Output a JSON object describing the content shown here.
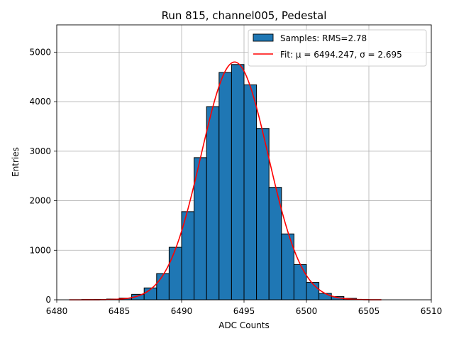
{
  "chart_data": {
    "type": "bar",
    "title": "Run 815, channel005, Pedestal",
    "xlabel": "ADC Counts",
    "ylabel": "Entries",
    "xlim": [
      6480,
      6510
    ],
    "ylim": [
      0,
      5550
    ],
    "xticks": [
      6480,
      6485,
      6490,
      6495,
      6500,
      6505,
      6510
    ],
    "yticks": [
      0,
      1000,
      2000,
      3000,
      4000,
      5000
    ],
    "grid": true,
    "legend_position": "top-right",
    "histogram": {
      "name": "Samples: RMS=2.78",
      "color": "#1f77b4",
      "edgecolor": "#000000",
      "bins": [
        {
          "x0": 6482,
          "x1": 6483,
          "value": 5
        },
        {
          "x0": 6483,
          "x1": 6484,
          "value": 8
        },
        {
          "x0": 6484,
          "x1": 6485,
          "value": 15
        },
        {
          "x0": 6485,
          "x1": 6486,
          "value": 35
        },
        {
          "x0": 6486,
          "x1": 6487,
          "value": 110
        },
        {
          "x0": 6487,
          "x1": 6488,
          "value": 240
        },
        {
          "x0": 6488,
          "x1": 6489,
          "value": 530
        },
        {
          "x0": 6489,
          "x1": 6490,
          "value": 1060
        },
        {
          "x0": 6490,
          "x1": 6491,
          "value": 1780
        },
        {
          "x0": 6491,
          "x1": 6492,
          "value": 2870
        },
        {
          "x0": 6492,
          "x1": 6493,
          "value": 3900
        },
        {
          "x0": 6493,
          "x1": 6494,
          "value": 4590
        },
        {
          "x0": 6494,
          "x1": 6495,
          "value": 4750
        },
        {
          "x0": 6495,
          "x1": 6496,
          "value": 4340
        },
        {
          "x0": 6496,
          "x1": 6497,
          "value": 3460
        },
        {
          "x0": 6497,
          "x1": 6498,
          "value": 2270
        },
        {
          "x0": 6498,
          "x1": 6499,
          "value": 1330
        },
        {
          "x0": 6499,
          "x1": 6500,
          "value": 710
        },
        {
          "x0": 6500,
          "x1": 6501,
          "value": 350
        },
        {
          "x0": 6501,
          "x1": 6502,
          "value": 130
        },
        {
          "x0": 6502,
          "x1": 6503,
          "value": 65
        },
        {
          "x0": 6503,
          "x1": 6504,
          "value": 30
        },
        {
          "x0": 6504,
          "x1": 6505,
          "value": 8
        }
      ]
    },
    "fit": {
      "name": "Fit: μ = 6494.247, σ = 2.695",
      "color": "#ff0000",
      "mu": 6494.247,
      "sigma": 2.695,
      "amplitude": 4800,
      "x_range": [
        6481,
        6506
      ]
    }
  }
}
